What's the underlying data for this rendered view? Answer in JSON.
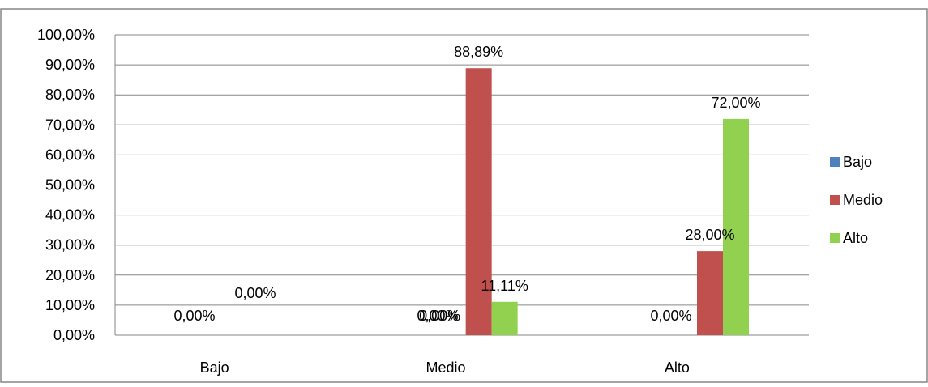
{
  "chart_data": {
    "type": "bar",
    "categories": [
      "Bajo",
      "Medio",
      "Alto"
    ],
    "series": [
      {
        "name": "Bajo",
        "color": "#4f81bd",
        "values": [
          0,
          0,
          0
        ],
        "labels": [
          "0,00%",
          "0,00%",
          "0,00%"
        ]
      },
      {
        "name": "Medio",
        "color": "#c0504d",
        "values": [
          0,
          88.89,
          28
        ],
        "labels": [
          "0,00%",
          "88,89%",
          "28,00%"
        ]
      },
      {
        "name": "Alto",
        "color": "#92d050",
        "values": [
          0,
          11.11,
          72
        ],
        "labels": [
          "0,00%",
          "11,11%",
          "72,00%"
        ]
      }
    ],
    "y_ticks": [
      "0,00%",
      "10,00%",
      "20,00%",
      "30,00%",
      "40,00%",
      "50,00%",
      "60,00%",
      "70,00%",
      "80,00%",
      "90,00%",
      "100,00%"
    ],
    "ylim": [
      0,
      100
    ],
    "grid": true,
    "legend_position": "right"
  }
}
